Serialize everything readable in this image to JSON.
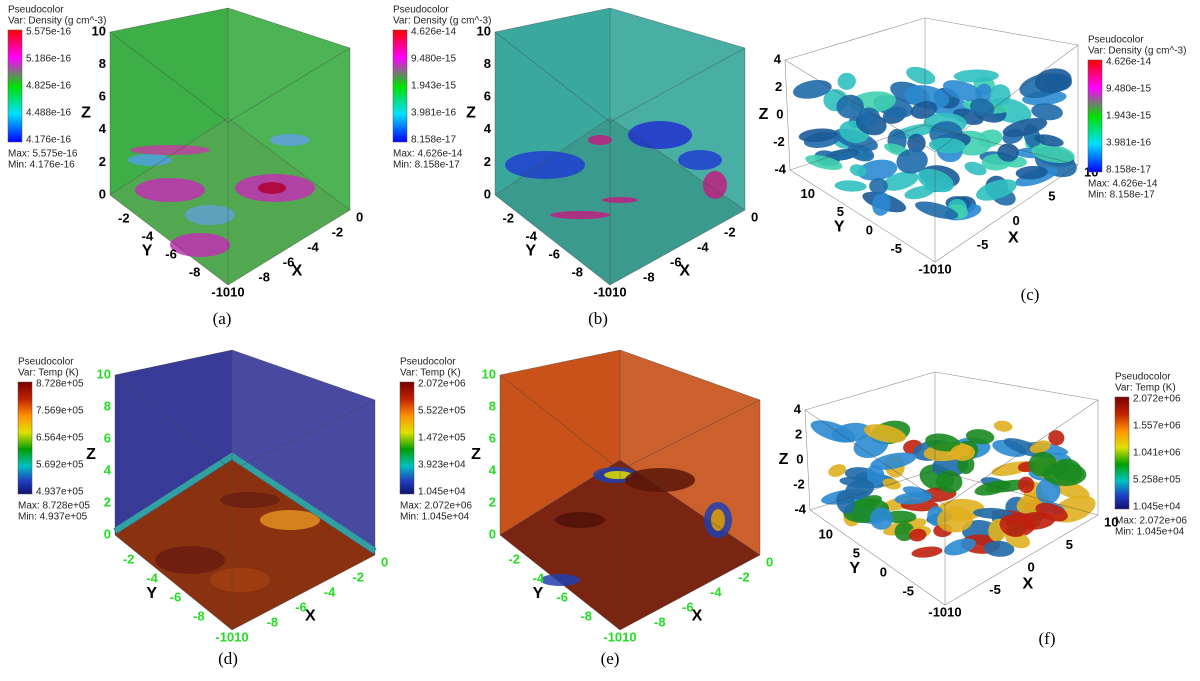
{
  "panels": [
    {
      "legend": {
        "title": "Pseudocolor",
        "var": "Var: Density (g cm^-3)",
        "labels": [
          "5.575e-16",
          "5.186e-16",
          "4.825e-16",
          "4.488e-16",
          "4.176e-16"
        ],
        "max": "Max:  5.575e-16",
        "min": "Min:  4.176e-16"
      },
      "axes": {
        "z_label": "Z",
        "y_label": "Y",
        "x_label": "X",
        "z_ticks": [
          "10",
          "8",
          "6",
          "4",
          "2",
          "0"
        ],
        "y_ticks": [
          "-2",
          "-4",
          "-6",
          "-8"
        ],
        "x_ticks": [
          "0",
          "-2",
          "-4",
          "-6",
          "-8"
        ],
        "corner": "-1010"
      },
      "caption": "(a)"
    },
    {
      "legend": {
        "title": "Pseudocolor",
        "var": "Var: Density (g cm^-3)",
        "labels": [
          "4.626e-14",
          "9.480e-15",
          "1.943e-15",
          "3.981e-16",
          "8.158e-17"
        ],
        "max": "Max:  4.626e-14",
        "min": "Min:  8.158e-17"
      },
      "axes": {
        "z_label": "Z",
        "y_label": "Y",
        "x_label": "X",
        "z_ticks": [
          "10",
          "8",
          "6",
          "4",
          "2",
          "0"
        ],
        "y_ticks": [
          "-2",
          "-4",
          "-6",
          "-8"
        ],
        "x_ticks": [
          "0",
          "-2",
          "-4",
          "-6",
          "-8"
        ],
        "corner": "-1010"
      },
      "caption": "(b)"
    },
    {
      "legend": {
        "title": "Pseudocolor",
        "var": "Var: Density (g cm^-3)",
        "labels": [
          "4.626e-14",
          "9.480e-15",
          "1.943e-15",
          "3.981e-16",
          "8.158e-17"
        ],
        "max": "Max:  4.626e-14",
        "min": "Min:  8.158e-17"
      },
      "axes": {
        "z_label": "Z",
        "y_label": "Y",
        "x_label": "X",
        "z_ticks": [
          "4",
          "2",
          "0",
          "-2",
          "-4"
        ],
        "y_ticks": [
          "10",
          "5",
          "0",
          "-5"
        ],
        "x_ticks": [
          "10",
          "5",
          "0",
          "-5"
        ],
        "corner": "-1010"
      },
      "caption": "(c)"
    },
    {
      "legend": {
        "title": "Pseudocolor",
        "var": "Var: Temp (K)",
        "labels": [
          "8.728e+05",
          "7.569e+05",
          "6.564e+05",
          "5.692e+05",
          "4.937e+05"
        ],
        "max": "Max:  8.728e+05",
        "min": "Min:  4.937e+05"
      },
      "axes": {
        "z_label": "Z",
        "y_label": "Y",
        "x_label": "X",
        "z_ticks": [
          "10",
          "8",
          "6",
          "4",
          "2",
          "0"
        ],
        "y_ticks": [
          "-2",
          "-4",
          "-6",
          "-8"
        ],
        "x_ticks": [
          "0",
          "-2",
          "-4",
          "-6",
          "-8"
        ],
        "corner": "-1010"
      },
      "caption": "(d)"
    },
    {
      "legend": {
        "title": "Pseudocolor",
        "var": "Var: Temp (K)",
        "labels": [
          "2.072e+06",
          "5.522e+05",
          "1.472e+05",
          "3.923e+04",
          "1.045e+04"
        ],
        "max": "Max:  2.072e+06",
        "min": "Min:  1.045e+04"
      },
      "axes": {
        "z_label": "Z",
        "y_label": "Y",
        "x_label": "X",
        "z_ticks": [
          "10",
          "8",
          "6",
          "4",
          "2",
          "0"
        ],
        "y_ticks": [
          "-2",
          "-4",
          "-6",
          "-8"
        ],
        "x_ticks": [
          "0",
          "-2",
          "-4",
          "-6",
          "-8"
        ],
        "corner": "-1010"
      },
      "caption": "(e)"
    },
    {
      "legend": {
        "title": "Pseudocolor",
        "var": "Var: Temp (K)",
        "labels": [
          "2.072e+06",
          "1.557e+06",
          "1.041e+06",
          "5.258e+05",
          "1.045e+04"
        ],
        "max": "Max:  2.072e+06",
        "min": "Min:  1.045e+04"
      },
      "axes": {
        "z_label": "Z",
        "y_label": "Y",
        "x_label": "X",
        "z_ticks": [
          "4",
          "2",
          "0",
          "-2",
          "-4"
        ],
        "y_ticks": [
          "10",
          "5",
          "0",
          "-5"
        ],
        "x_ticks": [
          "10",
          "5",
          "0",
          "-5"
        ],
        "corner": "-1010"
      },
      "caption": "(f)"
    }
  ]
}
